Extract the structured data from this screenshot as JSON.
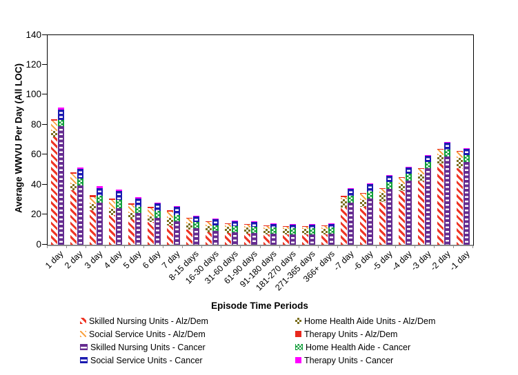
{
  "chart_data": {
    "type": "bar",
    "stacked": true,
    "title": "",
    "xlabel": "Episode Time Periods",
    "ylabel": "Average WWVU Per Day (All LOC)",
    "ylim": [
      0,
      140
    ],
    "ytick_interval": 20,
    "grid": false,
    "legend_position": "bottom",
    "legend_columns": 2,
    "axis_line_color": "#000000",
    "x_axis_color": "#8c8c8c",
    "categories": [
      "1 day",
      "2 day",
      "3 day",
      "4 day",
      "5 day",
      "6 day",
      "7 day",
      "8-15 days",
      "16-30 days",
      "31-60 days",
      "61-90 days",
      "91-180 days",
      "181-270 days",
      "271-365 days",
      "366+ days",
      "-7 day",
      "-6 day",
      "-5 day",
      "-4 day",
      "-3 day",
      "-2 day",
      "-1 day"
    ],
    "bar_groups": [
      "Alz/Dem",
      "Cancer"
    ],
    "series": [
      {
        "name": "Skilled Nursing Units - Alz/Dem",
        "group": "Alz/Dem",
        "color": "#ee3424",
        "pattern": "red-diag",
        "values": [
          72,
          36.5,
          23,
          20,
          17,
          15,
          13,
          10,
          8.5,
          8,
          7.5,
          7,
          7,
          7,
          7,
          25,
          25.5,
          28.5,
          36,
          42.5,
          54,
          51
        ]
      },
      {
        "name": "Home Health Aide Units - Alz/Dem",
        "group": "Alz/Dem",
        "color": "#7a6e1e",
        "pattern": "olive-check",
        "values": [
          4,
          4,
          4,
          4,
          4,
          4,
          5,
          4.5,
          4,
          4,
          4,
          3.5,
          3.5,
          3.5,
          3.5,
          5.5,
          4.5,
          6,
          4.5,
          4.5,
          6,
          7
        ]
      },
      {
        "name": "Social Service Units - Alz/Dem",
        "group": "Alz/Dem",
        "color": "#f9a240",
        "pattern": "orange-diag",
        "values": [
          7,
          7,
          5,
          6,
          5.5,
          5.5,
          4,
          3,
          2.5,
          2,
          2,
          2,
          1.5,
          1.5,
          2,
          1.5,
          4,
          3,
          4,
          3.5,
          3.5,
          4
        ]
      },
      {
        "name": "Therapy Units - Alz/Dem",
        "group": "Alz/Dem",
        "color": "#e8281e",
        "pattern": "red-solid",
        "values": [
          1,
          1,
          1,
          1,
          1,
          1,
          1,
          0.5,
          0.5,
          0.5,
          0.5,
          0.5,
          0.5,
          0.5,
          0.5,
          0.5,
          0.5,
          0.5,
          0.5,
          0.5,
          0.5,
          0.5
        ]
      },
      {
        "name": "Skilled Nursing Units - Cancer",
        "group": "Cancer",
        "color": "#652c90",
        "pattern": "purple-dash",
        "values": [
          79,
          39.5,
          28,
          24.5,
          21,
          18,
          15.5,
          11,
          9,
          8.5,
          8,
          7.5,
          7,
          7,
          7.5,
          28,
          31,
          37.5,
          43,
          51,
          59,
          55.5
        ]
      },
      {
        "name": "Home Health Aide - Cancer",
        "group": "Cancer",
        "color": "#109e3a",
        "pattern": "green-check",
        "values": [
          4.5,
          4.5,
          4.5,
          5.5,
          4.5,
          4.5,
          4.5,
          4,
          4,
          4,
          4,
          4,
          4,
          4,
          4,
          4.5,
          4.5,
          4.5,
          4.5,
          4.5,
          4.5,
          4.5
        ]
      },
      {
        "name": "Social Service Units - Cancer",
        "group": "Cancer",
        "color": "#1a1ab0",
        "pattern": "blue-dash",
        "values": [
          7,
          6.5,
          5.5,
          6,
          5.5,
          5,
          5.5,
          4,
          4,
          3,
          3,
          2.5,
          2.5,
          2.5,
          2.5,
          5,
          5,
          4,
          4,
          4,
          4.5,
          4
        ]
      },
      {
        "name": "Therapy Units - Cancer",
        "group": "Cancer",
        "color": "#ff00ff",
        "pattern": "magenta-solid",
        "values": [
          1,
          1,
          1,
          1,
          1,
          0.5,
          0.5,
          0.5,
          0.5,
          0.5,
          0.5,
          0.5,
          0.5,
          0.5,
          0.5,
          0.5,
          0.5,
          0.5,
          0.5,
          0.5,
          0.5,
          0.5
        ]
      }
    ]
  }
}
